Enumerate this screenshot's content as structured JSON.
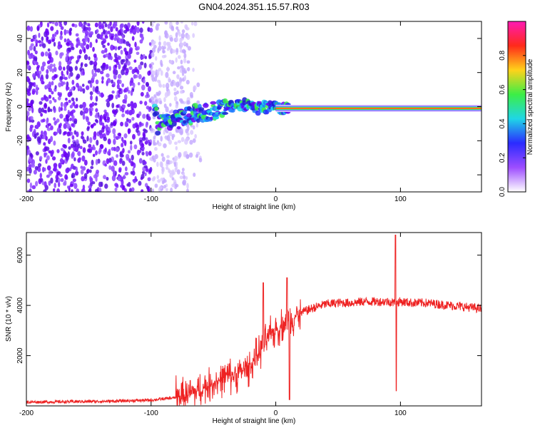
{
  "title": "GN04.2024.351.15.57.R03",
  "chart_data": [
    {
      "type": "heatmap",
      "xlabel": "Height of straight line (km)",
      "ylabel": "Frequency (Hz)",
      "xlim": [
        -200,
        165
      ],
      "ylim": [
        -50,
        50
      ],
      "xticks": [
        -200,
        -100,
        0,
        100
      ],
      "yticks": [
        -40,
        -20,
        0,
        20,
        40
      ],
      "grid": false,
      "colorbar": {
        "label": "Normalized spectral amplitude",
        "range": [
          0.0,
          1.0
        ],
        "ticks": [
          0.0,
          0.2,
          0.4,
          0.6,
          0.8
        ],
        "colors": [
          "#ffffff",
          "#9d4dff",
          "#2b2bff",
          "#1fd6e6",
          "#3cee46",
          "#ffd21a",
          "#ff2a1a",
          "#ff1ab4"
        ]
      },
      "features": {
        "noise_region_x": [
          -200,
          -70
        ],
        "trace_points": [
          {
            "x": -95,
            "y": -11
          },
          {
            "x": -85,
            "y": -9
          },
          {
            "x": -75,
            "y": -7
          },
          {
            "x": -65,
            "y": -4
          },
          {
            "x": -55,
            "y": -3
          },
          {
            "x": -45,
            "y": -1
          },
          {
            "x": -35,
            "y": 0
          },
          {
            "x": -25,
            "y": 1
          },
          {
            "x": -15,
            "y": -1
          },
          {
            "x": -5,
            "y": 0
          },
          {
            "x": 5,
            "y": -1
          },
          {
            "x": 165,
            "y": -1
          }
        ],
        "steady_line_start_x": 10,
        "steady_line_freq": -1
      }
    },
    {
      "type": "line",
      "xlabel": "Height of straight line (km)",
      "ylabel": "SNR (10 * v/v)",
      "xlim": [
        -200,
        165
      ],
      "ylim": [
        0,
        6900
      ],
      "xticks": [
        -200,
        -100,
        0,
        100
      ],
      "yticks": [
        2000,
        4000,
        6000
      ],
      "grid": false,
      "series": [
        {
          "color": "#ee2222",
          "x": [
            -200,
            -180,
            -160,
            -140,
            -120,
            -100,
            -90,
            -80,
            -70,
            -60,
            -50,
            -40,
            -30,
            -20,
            -15,
            -10,
            -5,
            0,
            5,
            10,
            20,
            30,
            40,
            50,
            60,
            70,
            80,
            90,
            95,
            100,
            110,
            120,
            130,
            140,
            150,
            160,
            165
          ],
          "values": [
            150,
            160,
            170,
            180,
            200,
            230,
            280,
            330,
            450,
            650,
            900,
            1150,
            1300,
            1600,
            2000,
            2400,
            2800,
            3000,
            3200,
            3400,
            3700,
            3900,
            4050,
            4100,
            4100,
            4150,
            4150,
            4150,
            4100,
            4150,
            4100,
            4100,
            4050,
            4000,
            3950,
            3900,
            3850
          ],
          "spikes": [
            {
              "x": -10,
              "value": 4900
            },
            {
              "x": 9,
              "value": 5100
            },
            {
              "x": 11,
              "value": 250
            },
            {
              "x": 96,
              "value": 6800
            },
            {
              "x": 96.6,
              "value": 600
            }
          ]
        }
      ]
    }
  ]
}
